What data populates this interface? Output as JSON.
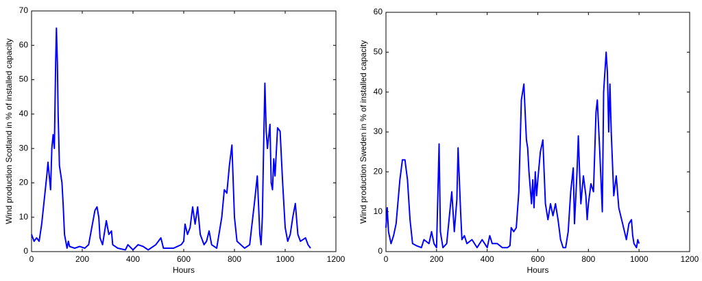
{
  "chart_data": [
    {
      "type": "line",
      "xlabel": "Hours",
      "ylabel": "Wind production Scotland in % of installed capacity",
      "color": "#0000ff",
      "x": [
        0,
        10,
        20,
        30,
        40,
        50,
        60,
        65,
        70,
        75,
        80,
        85,
        90,
        95,
        98,
        102,
        105,
        110,
        120,
        125,
        130,
        140,
        145,
        150,
        170,
        190,
        210,
        225,
        240,
        250,
        258,
        265,
        270,
        280,
        295,
        305,
        315,
        320,
        340,
        370,
        380,
        400,
        420,
        440,
        460,
        490,
        510,
        520,
        560,
        590,
        600,
        605,
        615,
        625,
        635,
        645,
        655,
        665,
        680,
        690,
        700,
        710,
        730,
        750,
        760,
        770,
        780,
        790,
        800,
        810,
        840,
        860,
        880,
        890,
        900,
        905,
        910,
        915,
        920,
        925,
        930,
        940,
        945,
        950,
        955,
        960,
        970,
        980,
        990,
        1000,
        1010,
        1020,
        1030,
        1040,
        1050,
        1060,
        1080,
        1090,
        1100
      ],
      "values": [
        5,
        3,
        4,
        3,
        8,
        15,
        22,
        26,
        22,
        18,
        30,
        34,
        30,
        55,
        65,
        55,
        40,
        25,
        20,
        13,
        5,
        1,
        3,
        1.5,
        1,
        1.5,
        1,
        2,
        8,
        12,
        13,
        10,
        4,
        2,
        9,
        5,
        6,
        2,
        1,
        0.5,
        2,
        0.5,
        2,
        1.5,
        0.5,
        2,
        4,
        1,
        1,
        2,
        3,
        8,
        5,
        7,
        13,
        8,
        13,
        5,
        2,
        3,
        6,
        2,
        1,
        10,
        18,
        17,
        25,
        31,
        10,
        3,
        1,
        2,
        15,
        22,
        5,
        2,
        10,
        30,
        49,
        35,
        30,
        37,
        20,
        18,
        27,
        22,
        36,
        35,
        20,
        7,
        3,
        5,
        10,
        14,
        5,
        3,
        4,
        2,
        1
      ],
      "xlim": [
        0,
        1200
      ],
      "xticks": [
        0,
        200,
        400,
        600,
        800,
        1000,
        1200
      ],
      "ylim": [
        0,
        70
      ],
      "yticks": [
        0,
        10,
        20,
        30,
        40,
        50,
        60,
        70
      ]
    },
    {
      "type": "line",
      "xlabel": "Hours",
      "ylabel": "Wind production Sweden in % of installed capacity",
      "color": "#0000ff",
      "x": [
        0,
        5,
        10,
        20,
        30,
        40,
        55,
        65,
        75,
        85,
        95,
        105,
        120,
        140,
        150,
        170,
        180,
        190,
        200,
        210,
        215,
        225,
        240,
        260,
        270,
        280,
        285,
        295,
        300,
        310,
        320,
        340,
        360,
        380,
        400,
        410,
        420,
        440,
        460,
        480,
        490,
        495,
        505,
        515,
        525,
        535,
        545,
        550,
        555,
        560,
        565,
        575,
        580,
        585,
        590,
        595,
        600,
        610,
        620,
        625,
        630,
        640,
        650,
        660,
        670,
        680,
        690,
        700,
        710,
        720,
        730,
        740,
        745,
        755,
        760,
        765,
        770,
        780,
        790,
        795,
        800,
        810,
        820,
        830,
        835,
        845,
        855,
        860,
        870,
        875,
        880,
        885,
        890,
        900,
        910,
        920,
        935,
        950,
        960,
        970,
        975,
        980,
        990,
        995,
        1000
      ],
      "values": [
        6,
        11,
        5,
        2,
        4,
        7,
        18,
        23,
        23,
        18,
        8,
        2,
        1.5,
        1,
        3,
        2,
        5,
        2,
        1,
        27,
        5,
        1,
        2,
        15,
        5,
        13,
        26,
        10,
        3,
        4,
        2,
        3,
        1,
        3,
        1,
        4,
        2,
        2,
        1,
        1,
        1.5,
        6,
        5,
        6,
        15,
        38,
        42,
        35,
        28,
        26,
        20,
        12,
        18,
        11,
        20,
        14,
        18,
        25,
        28,
        20,
        12,
        8,
        12,
        9,
        12,
        8,
        3,
        1,
        1,
        5,
        15,
        21,
        7,
        20,
        29,
        20,
        12,
        19,
        14,
        8,
        12,
        17,
        15,
        35,
        38,
        25,
        10,
        40,
        50,
        45,
        30,
        42,
        30,
        14,
        19,
        11,
        7,
        3,
        7,
        8,
        4,
        2,
        1,
        3,
        2
      ],
      "xlim": [
        0,
        1200
      ],
      "xticks": [
        0,
        200,
        400,
        600,
        800,
        1000,
        1200
      ],
      "ylim": [
        0,
        60
      ],
      "yticks": [
        0,
        10,
        20,
        30,
        40,
        50,
        60
      ]
    }
  ]
}
